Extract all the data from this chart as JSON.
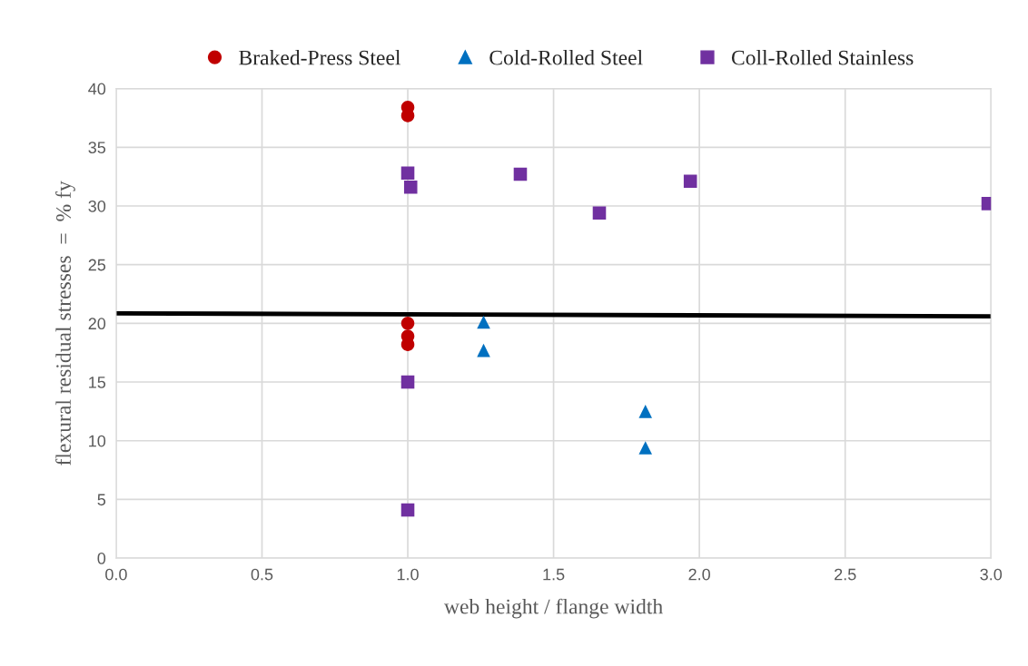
{
  "chart_data": {
    "type": "scatter",
    "xlabel": "web height / flange width",
    "ylabel": "flexural residual stresses  =  % fy",
    "xlim": [
      0,
      3
    ],
    "xticks": [
      {
        "value": 0,
        "label": "0.0"
      },
      {
        "value": 0.5,
        "label": "0.5"
      },
      {
        "value": 1,
        "label": "1.0"
      },
      {
        "value": 1.5,
        "label": "1.5"
      },
      {
        "value": 2,
        "label": "2.0"
      },
      {
        "value": 2.5,
        "label": "2.5"
      },
      {
        "value": 3,
        "label": "3.0"
      }
    ],
    "ylim": [
      0,
      40
    ],
    "yticks": [
      0,
      5,
      10,
      15,
      20,
      25,
      30,
      35,
      40
    ],
    "grid": true,
    "legend": "top",
    "series": [
      {
        "name": "Braked-Press Steel",
        "color": "#c00000",
        "marker": "circle",
        "x": [
          1.0,
          1.0,
          1.0,
          1.0,
          1.0
        ],
        "values": [
          38.4,
          37.7,
          20.0,
          18.9,
          18.2
        ]
      },
      {
        "name": "Cold-Rolled Steel",
        "color": "#0070c0",
        "marker": "triangle",
        "x": [
          1.26,
          1.26,
          1.815,
          1.815
        ],
        "values": [
          20.1,
          17.7,
          12.5,
          9.4
        ]
      },
      {
        "name": "Coll-Rolled Stainless",
        "color": "#7030a0",
        "marker": "square",
        "x": [
          1.0,
          1.01,
          1.386,
          1.657,
          1.969,
          2.99,
          1.0,
          1.0
        ],
        "values": [
          32.8,
          31.6,
          32.7,
          29.4,
          32.1,
          30.2,
          15.0,
          4.1
        ]
      },
      {
        "type": "line",
        "color": "#000000",
        "marker": "none",
        "x": [
          0,
          3
        ],
        "values": [
          20.85,
          20.6
        ]
      }
    ]
  }
}
